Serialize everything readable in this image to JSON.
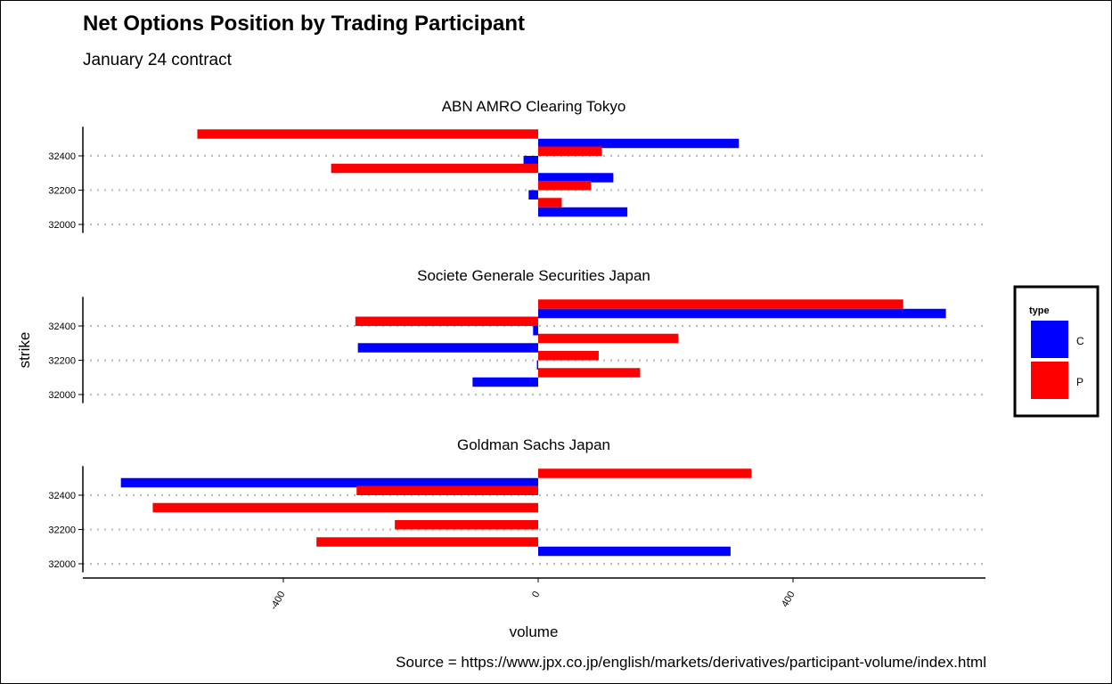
{
  "header": {
    "title": "Net Options Position by Trading Participant",
    "subtitle": "January 24 contract"
  },
  "caption": "Source = https://www.jpx.co.jp/english/markets/derivatives/participant-volume/index.html",
  "colors": {
    "C": "#0000ff",
    "P": "#ff0000",
    "grid": "#bbbbbb"
  },
  "chart_data": {
    "type": "bar",
    "orientation": "horizontal",
    "xlabel": "volume",
    "ylabel": "strike",
    "xlim": [
      -650,
      700
    ],
    "x_ticks": [
      -400,
      0,
      400
    ],
    "y_ticks": [
      32000,
      32200,
      32400
    ],
    "ylim": [
      31950,
      32570
    ],
    "grid": "dotted horizontal at y ticks",
    "legend": {
      "title": "type",
      "position": "right",
      "entries": [
        {
          "key": "C",
          "label": "C"
        },
        {
          "key": "P",
          "label": "P"
        }
      ]
    },
    "facets": [
      {
        "name": "ABN AMRO Clearing Tokyo",
        "bars": [
          {
            "strike": 32500,
            "type": "P",
            "volume": -535
          },
          {
            "strike": 32500,
            "type": "C",
            "volume": 315
          },
          {
            "strike": 32400,
            "type": "P",
            "volume": 100
          },
          {
            "strike": 32400,
            "type": "C",
            "volume": -23
          },
          {
            "strike": 32300,
            "type": "P",
            "volume": -325
          },
          {
            "strike": 32300,
            "type": "C",
            "volume": 118
          },
          {
            "strike": 32200,
            "type": "P",
            "volume": 83
          },
          {
            "strike": 32200,
            "type": "C",
            "volume": -15
          },
          {
            "strike": 32100,
            "type": "P",
            "volume": 37
          },
          {
            "strike": 32100,
            "type": "C",
            "volume": 140
          }
        ]
      },
      {
        "name": "Societe Generale Securities Japan",
        "bars": [
          {
            "strike": 32500,
            "type": "P",
            "volume": 573
          },
          {
            "strike": 32500,
            "type": "C",
            "volume": 640
          },
          {
            "strike": 32400,
            "type": "P",
            "volume": -287
          },
          {
            "strike": 32400,
            "type": "C",
            "volume": -8
          },
          {
            "strike": 32300,
            "type": "P",
            "volume": 220
          },
          {
            "strike": 32300,
            "type": "C",
            "volume": -283
          },
          {
            "strike": 32200,
            "type": "P",
            "volume": 95
          },
          {
            "strike": 32200,
            "type": "C",
            "volume": -2
          },
          {
            "strike": 32100,
            "type": "P",
            "volume": 160
          },
          {
            "strike": 32100,
            "type": "C",
            "volume": -103
          }
        ]
      },
      {
        "name": "Goldman Sachs Japan",
        "bars": [
          {
            "strike": 32500,
            "type": "P",
            "volume": 335
          },
          {
            "strike": 32500,
            "type": "C",
            "volume": -655
          },
          {
            "strike": 32400,
            "type": "P",
            "volume": -285
          },
          {
            "strike": 32300,
            "type": "P",
            "volume": -605
          },
          {
            "strike": 32200,
            "type": "P",
            "volume": -225
          },
          {
            "strike": 32100,
            "type": "P",
            "volume": -348
          },
          {
            "strike": 32100,
            "type": "C",
            "volume": 302
          }
        ]
      }
    ]
  }
}
